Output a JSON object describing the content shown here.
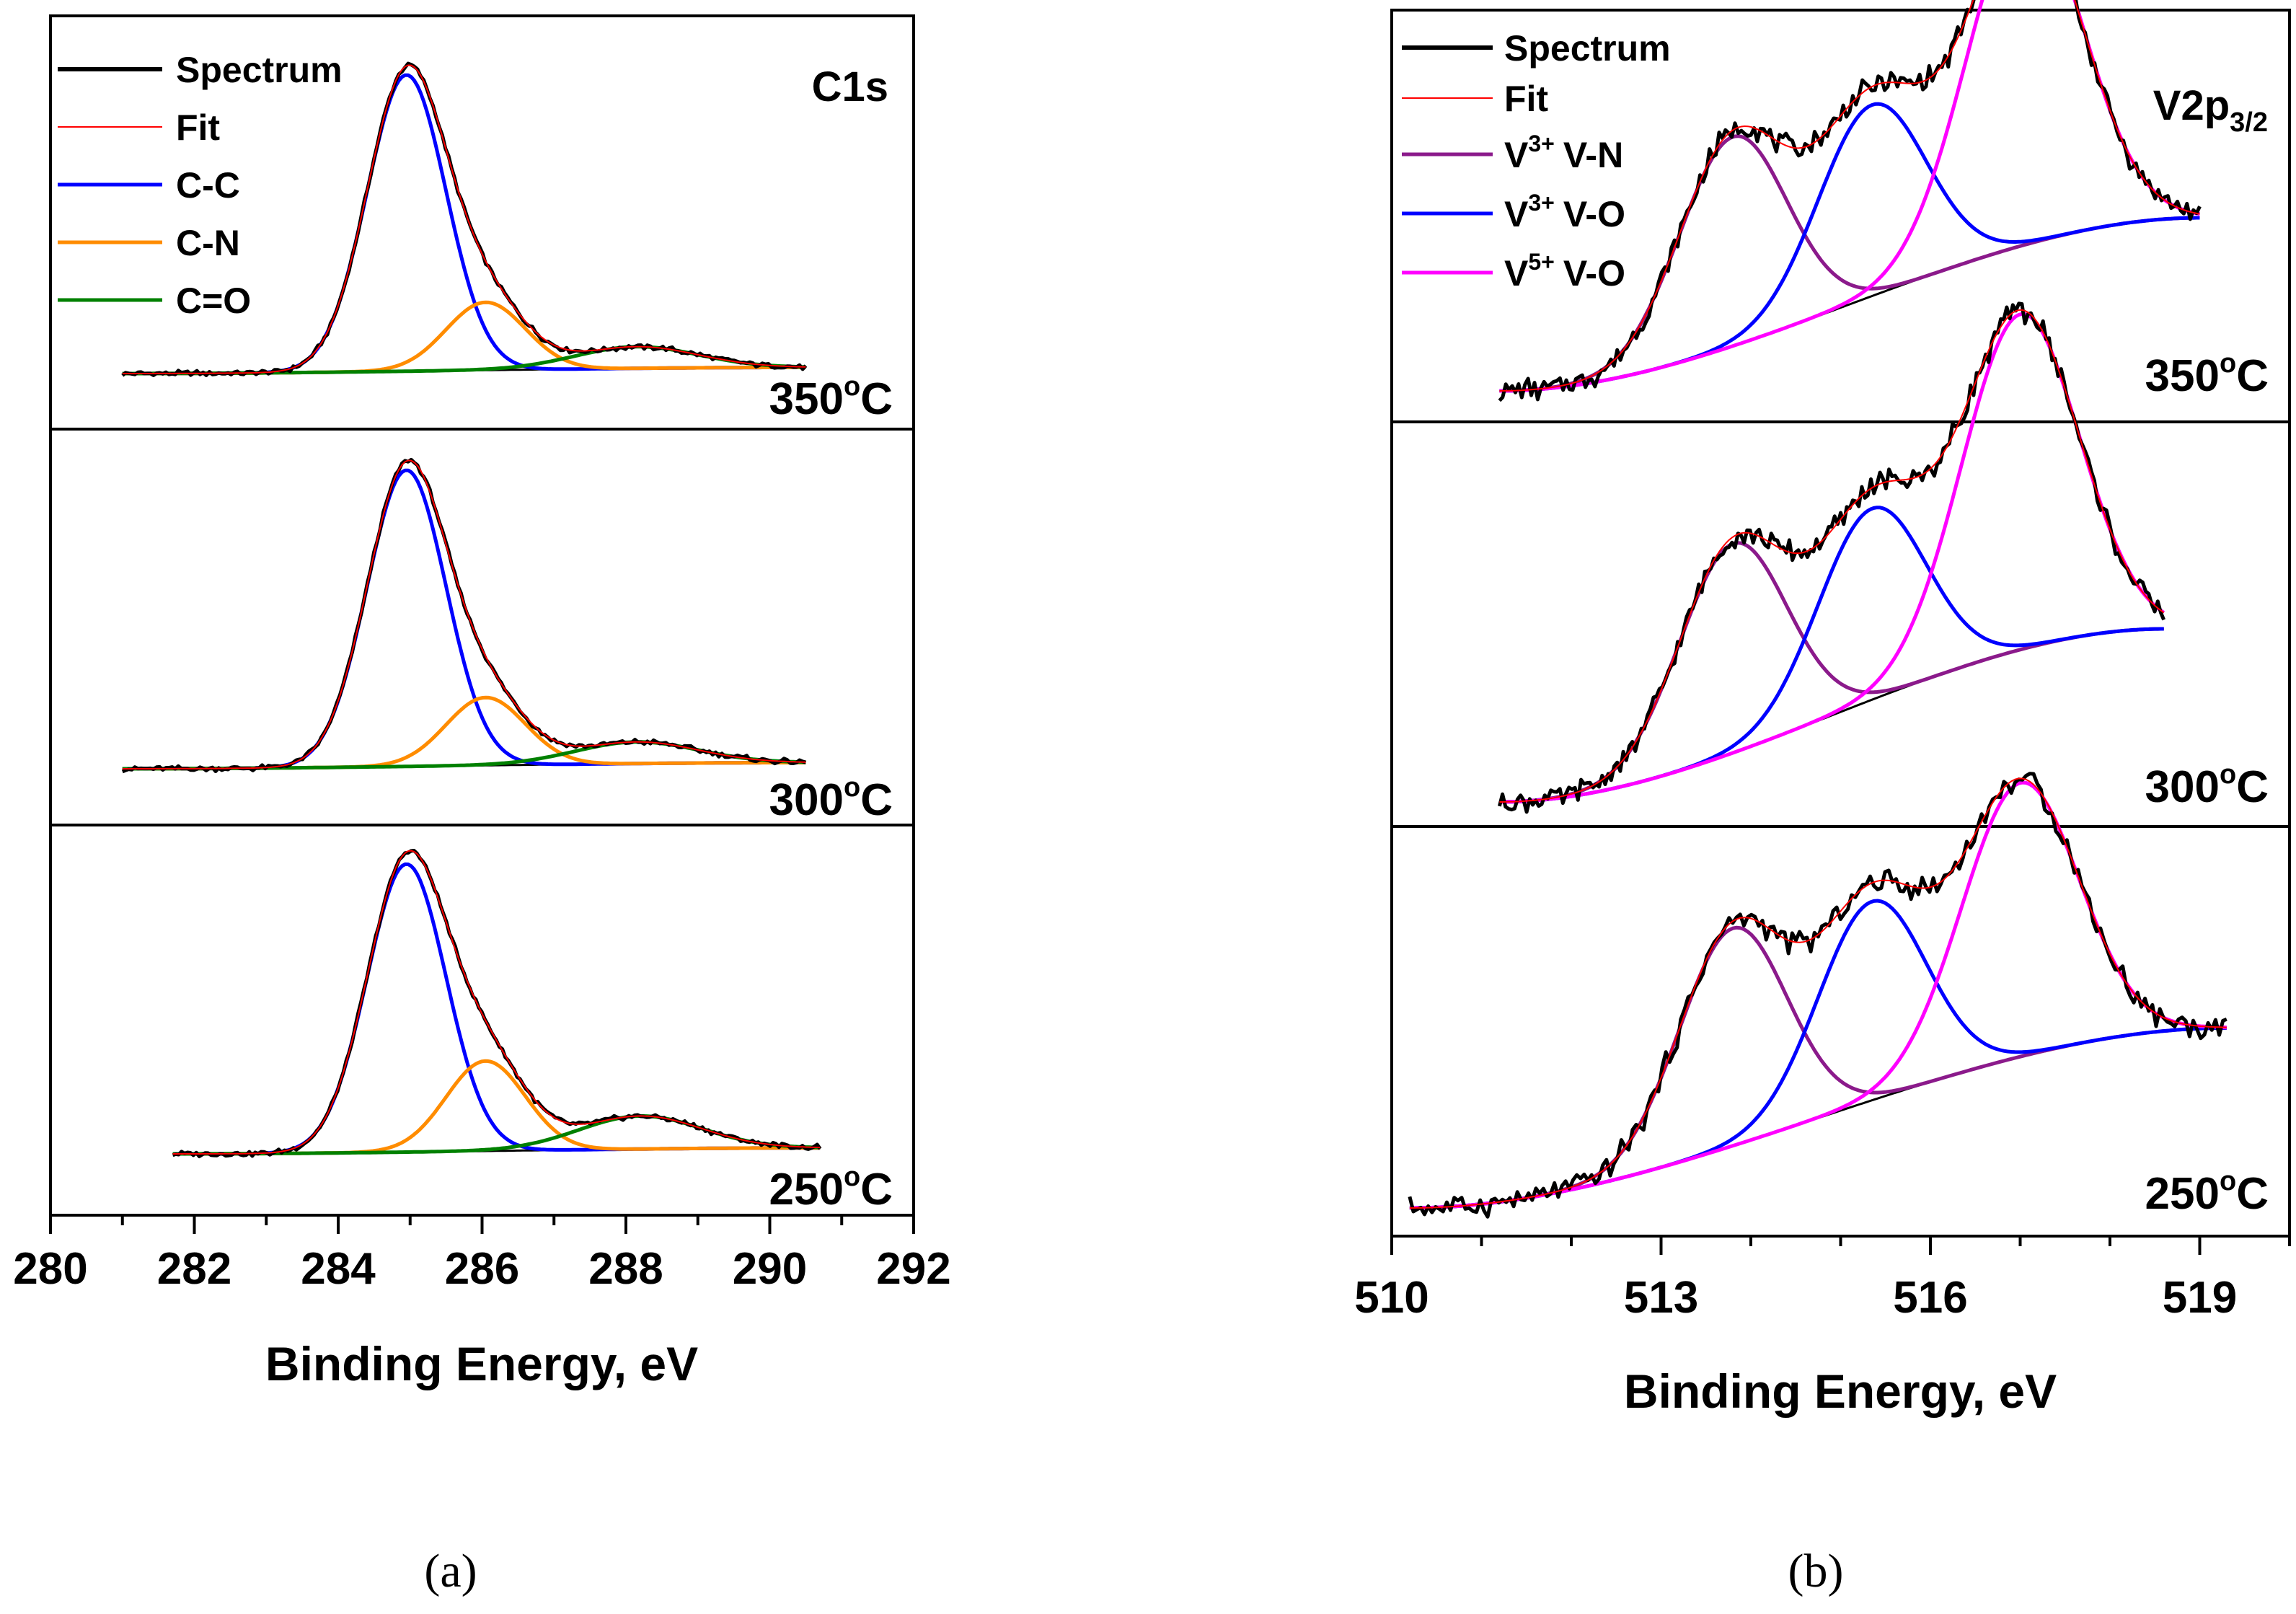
{
  "chart_data": [
    {
      "type": "line",
      "id": "a",
      "caption": "(a)",
      "title": "C1s",
      "xlabel": "Binding Energy, eV",
      "ylabel": "",
      "xlim": [
        280,
        292
      ],
      "xticks": [
        "280",
        "282",
        "284",
        "286",
        "288",
        "290",
        "292"
      ],
      "xtick_values": [
        280,
        282,
        284,
        286,
        288,
        290,
        292
      ],
      "minor_step": 1,
      "data_range": [
        281.0,
        290.5
      ],
      "legend": [
        {
          "name": "Spectrum",
          "color": "#000000"
        },
        {
          "name": "Fit",
          "color": "#ff0000"
        },
        {
          "name": "C-C",
          "color": "#0000ff"
        },
        {
          "name": "C-N",
          "color": "#ff8c00"
        },
        {
          "name": "C=O",
          "color": "#008000"
        }
      ],
      "panels": [
        {
          "label": "350°C",
          "temp_number": "350",
          "temp_super": "o",
          "temp_unit": "C",
          "data_range": [
            281.0,
            290.5
          ],
          "background": [
            0.0,
            0.02
          ],
          "components": [
            {
              "name": "C-C",
              "color": "#0000ff",
              "center": 284.95,
              "amplitude": 0.96,
              "width": 0.55
            },
            {
              "name": "C-N",
              "color": "#ff8c00",
              "center": 286.05,
              "amplitude": 0.22,
              "width": 0.55
            },
            {
              "name": "C=O",
              "color": "#008000",
              "center": 288.15,
              "amplitude": 0.07,
              "width": 0.85
            }
          ]
        },
        {
          "label": "300°C",
          "temp_number": "300",
          "temp_super": "o",
          "temp_unit": "C",
          "data_range": [
            281.0,
            290.5
          ],
          "background": [
            0.0,
            0.02
          ],
          "components": [
            {
              "name": "C-C",
              "color": "#0000ff",
              "center": 284.95,
              "amplitude": 0.96,
              "width": 0.55
            },
            {
              "name": "C-N",
              "color": "#ff8c00",
              "center": 286.05,
              "amplitude": 0.22,
              "width": 0.55
            },
            {
              "name": "C=O",
              "color": "#008000",
              "center": 288.15,
              "amplitude": 0.07,
              "width": 0.85
            }
          ]
        },
        {
          "label": "250°C",
          "temp_number": "250",
          "temp_super": "o",
          "temp_unit": "C",
          "data_range": [
            281.7,
            290.7
          ],
          "background": [
            0.0,
            0.02
          ],
          "components": [
            {
              "name": "C-C",
              "color": "#0000ff",
              "center": 284.95,
              "amplitude": 0.96,
              "width": 0.55
            },
            {
              "name": "C-N",
              "color": "#ff8c00",
              "center": 286.05,
              "amplitude": 0.3,
              "width": 0.55
            },
            {
              "name": "C=O",
              "color": "#008000",
              "center": 288.2,
              "amplitude": 0.11,
              "width": 0.85
            }
          ]
        }
      ]
    },
    {
      "type": "line",
      "id": "b",
      "caption": "(b)",
      "title": "V2p3/2",
      "title_main": "V2p",
      "title_sub": "3/2",
      "xlabel": "Binding Energy, eV",
      "ylabel": "",
      "xlim": [
        510,
        520
      ],
      "xticks": [
        "510",
        "513",
        "516",
        "519"
      ],
      "xtick_values": [
        510,
        513,
        516,
        519
      ],
      "minor_step": 1,
      "legend": [
        {
          "name": "Spectrum",
          "color": "#000000"
        },
        {
          "name": "Fit",
          "color": "#ff0000"
        },
        {
          "name": "V3+ V-N",
          "ion": "V",
          "charge": "3+",
          "bond": "V-N",
          "color": "#8b1a8b"
        },
        {
          "name": "V3+ V-O",
          "ion": "V",
          "charge": "3+",
          "bond": "V-O",
          "color": "#0000ff"
        },
        {
          "name": "V5+ V-O",
          "ion": "V",
          "charge": "5+",
          "bond": "V-O",
          "color": "#ff00ff"
        }
      ],
      "panels": [
        {
          "label": "350°C",
          "temp_number": "350",
          "temp_super": "o",
          "temp_unit": "C",
          "data_range": [
            511.2,
            519.0
          ],
          "background": [
            0.0,
            0.48
          ],
          "components": [
            {
              "name": "V3+ V-N",
              "color": "#8b1a8b",
              "center": 513.8,
              "amplitude": 0.58,
              "width": 0.6
            },
            {
              "name": "V3+ V-O",
              "color": "#0000ff",
              "center": 515.35,
              "amplitude": 0.53,
              "width": 0.6
            },
            {
              "name": "V5+ V-O",
              "color": "#ff00ff",
              "center": 517.05,
              "amplitude": 0.93,
              "width": 0.65
            }
          ]
        },
        {
          "label": "300°C",
          "temp_number": "300",
          "temp_super": "o",
          "temp_unit": "C",
          "data_range": [
            511.2,
            518.6
          ],
          "background": [
            0.0,
            0.48
          ],
          "components": [
            {
              "name": "V3+ V-N",
              "color": "#8b1a8b",
              "center": 513.8,
              "amplitude": 0.58,
              "width": 0.6
            },
            {
              "name": "V3+ V-O",
              "color": "#0000ff",
              "center": 515.35,
              "amplitude": 0.53,
              "width": 0.6
            },
            {
              "name": "V5+ V-O",
              "color": "#ff00ff",
              "center": 517.0,
              "amplitude": 0.93,
              "width": 0.65
            }
          ]
        },
        {
          "label": "250°C",
          "temp_number": "250",
          "temp_super": "o",
          "temp_unit": "C",
          "data_range": [
            510.2,
            519.3
          ],
          "background": [
            0.0,
            0.48
          ],
          "components": [
            {
              "name": "V3+ V-N",
              "color": "#8b1a8b",
              "center": 513.8,
              "amplitude": 0.58,
              "width": 0.6
            },
            {
              "name": "V3+ V-O",
              "color": "#0000ff",
              "center": 515.35,
              "amplitude": 0.53,
              "width": 0.6
            },
            {
              "name": "V5+ V-O",
              "color": "#ff00ff",
              "center": 517.0,
              "amplitude": 0.73,
              "width": 0.65
            }
          ]
        }
      ]
    }
  ]
}
